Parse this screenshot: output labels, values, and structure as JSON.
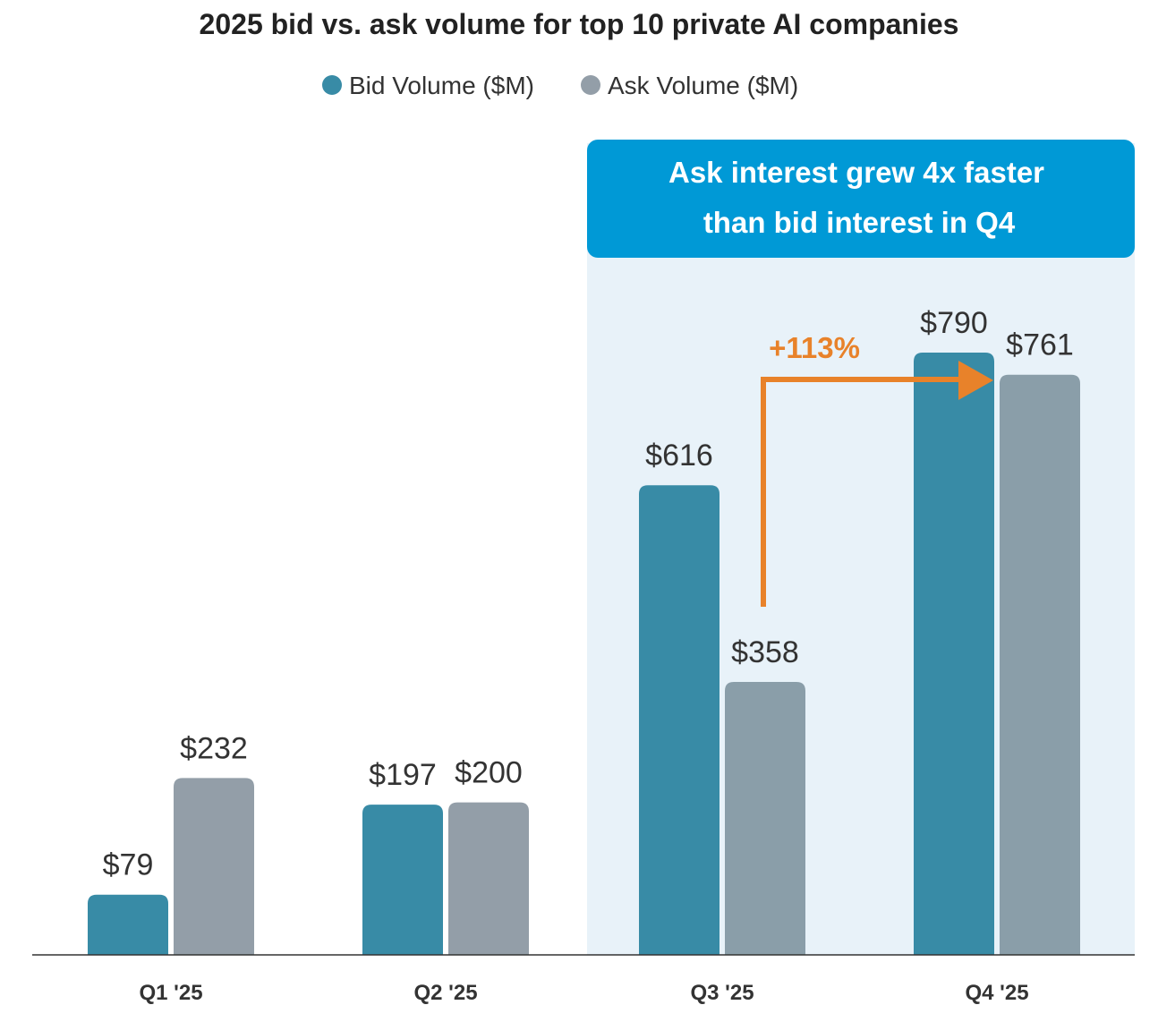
{
  "chart_data": {
    "type": "bar",
    "title": "2025 bid vs. ask volume for top 10 private AI companies",
    "categories": [
      "Q1 '25",
      "Q2 '25",
      "Q3 '25",
      "Q4 '25"
    ],
    "series": [
      {
        "name": "Bid Volume ($M)",
        "values": [
          79,
          197,
          616,
          790
        ],
        "labels": [
          "$79",
          "$197",
          "$616",
          "$790"
        ],
        "color": "#388ba6"
      },
      {
        "name": "Ask Volume ($M)",
        "values": [
          232,
          200,
          358,
          761
        ],
        "labels": [
          "$232",
          "$200",
          "$358",
          "$761"
        ],
        "color": "#939ea8"
      }
    ],
    "ylim": [
      0,
      800
    ],
    "xlabel": "",
    "ylabel": "",
    "grid": false,
    "legend": "top-center",
    "annotations": {
      "callout_line1": "Ask interest grew 4x faster",
      "callout_line2": "than bid interest in Q4",
      "growth_label": "+113%",
      "callout_color": "#0099d6",
      "highlight_color": "#e8f2f9",
      "arrow_color": "#e8822a"
    }
  }
}
